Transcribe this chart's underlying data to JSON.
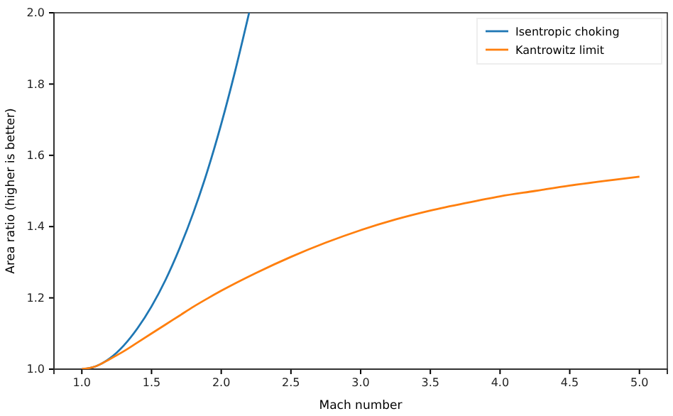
{
  "chart_data": {
    "type": "line",
    "xlabel": "Mach number",
    "ylabel": "Area ratio (higher is better)",
    "xlim": [
      0.8,
      5.2
    ],
    "ylim": [
      1.0,
      2.0
    ],
    "xticks": [
      {
        "value": 1,
        "label": "1.0"
      },
      {
        "value": 1.5,
        "label": "1.5"
      },
      {
        "value": 2,
        "label": "2.0"
      },
      {
        "value": 2.5,
        "label": "2.5"
      },
      {
        "value": 3,
        "label": "3.0"
      },
      {
        "value": 3.5,
        "label": "3.5"
      },
      {
        "value": 4,
        "label": "4.0"
      },
      {
        "value": 4.5,
        "label": "4.5"
      },
      {
        "value": 5,
        "label": "5.0"
      }
    ],
    "yticks": [
      {
        "value": 1,
        "label": "1.0"
      },
      {
        "value": 1.2,
        "label": "1.2"
      },
      {
        "value": 1.4,
        "label": "1.4"
      },
      {
        "value": 1.6,
        "label": "1.6"
      },
      {
        "value": 1.8,
        "label": "1.8"
      },
      {
        "value": 2,
        "label": "2.0"
      }
    ],
    "grid": false,
    "legend": "top right",
    "line_style": "solid",
    "marker": "none",
    "series": [
      {
        "name": "Isentropic choking",
        "color": "#1f77b4",
        "x": [
          1.0,
          1.1,
          1.2,
          1.3,
          1.4,
          1.5,
          1.6,
          1.7,
          1.8,
          1.9,
          2.0,
          2.1,
          2.2
        ],
        "values": [
          1.0,
          1.008,
          1.03,
          1.066,
          1.115,
          1.176,
          1.25,
          1.338,
          1.439,
          1.555,
          1.688,
          1.837,
          2.0
        ]
      },
      {
        "name": "Kantrowitz limit",
        "color": "#ff7f0e",
        "x": [
          1.0,
          1.1,
          1.2,
          1.3,
          1.4,
          1.5,
          1.6,
          1.7,
          1.8,
          1.9,
          2.0,
          2.25,
          2.5,
          2.75,
          3.0,
          3.25,
          3.5,
          3.75,
          4.0,
          4.25,
          4.5,
          4.75,
          5.0
        ],
        "values": [
          1.0,
          1.008,
          1.028,
          1.05,
          1.075,
          1.1,
          1.125,
          1.15,
          1.175,
          1.198,
          1.22,
          1.27,
          1.315,
          1.355,
          1.39,
          1.42,
          1.445,
          1.466,
          1.485,
          1.5,
          1.515,
          1.528,
          1.54
        ]
      }
    ]
  }
}
